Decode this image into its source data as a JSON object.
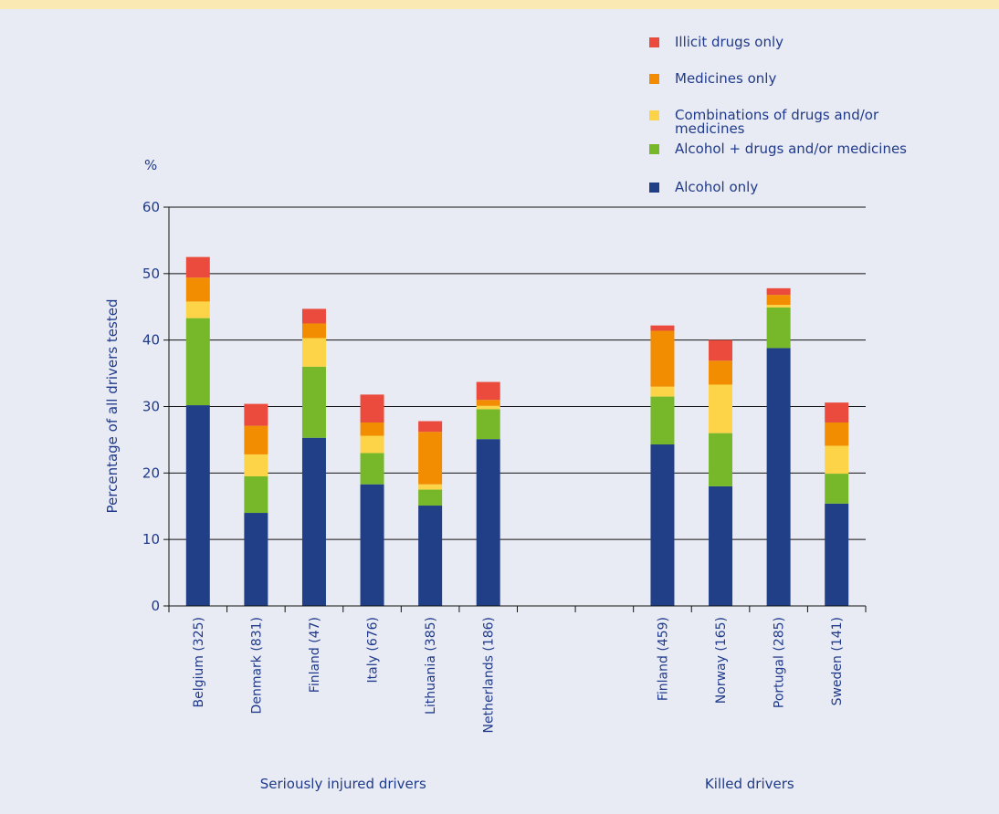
{
  "chart_data": {
    "type": "bar",
    "stacked": true,
    "ylabel": "Percentage of all drivers tested",
    "yunit": "%",
    "ylim": [
      0,
      60
    ],
    "yticks": [
      0,
      10,
      20,
      30,
      40,
      50,
      60
    ],
    "grid": true,
    "legend_position": "top-right",
    "categories": [
      "Belgium (325)",
      "Denmark (831)",
      "Finland (47)",
      "Italy (676)",
      "Lithuania (385)",
      "Netherlands (186)",
      "",
      "",
      "Finland (459)",
      "Norway (165)",
      "Portugal (285)",
      "Sweden (141)"
    ],
    "groups": [
      {
        "label": "Seriously injured drivers",
        "from": 0,
        "to": 5
      },
      {
        "label": "Killed drivers",
        "from": 8,
        "to": 11
      }
    ],
    "series": [
      {
        "name": "Alcohol only",
        "color": "#203f87",
        "values": [
          30.2,
          14.0,
          25.3,
          18.3,
          15.1,
          25.1,
          null,
          null,
          24.3,
          18.0,
          38.8,
          15.4
        ]
      },
      {
        "name": "Alcohol + drugs and/or medicines",
        "color": "#76b82a",
        "values": [
          13.1,
          5.5,
          10.7,
          4.7,
          2.4,
          4.5,
          null,
          null,
          7.2,
          8.0,
          6.1,
          4.5
        ]
      },
      {
        "name": "Combinations of drugs and/or medicines",
        "color": "#fdd447",
        "values": [
          2.5,
          3.3,
          4.3,
          2.6,
          0.8,
          0.5,
          null,
          null,
          1.5,
          7.3,
          0.4,
          4.2
        ]
      },
      {
        "name": "Medicines only",
        "color": "#f28c00",
        "values": [
          3.6,
          4.3,
          2.2,
          2.0,
          7.9,
          0.9,
          null,
          null,
          8.4,
          3.6,
          1.5,
          3.5
        ]
      },
      {
        "name": "Illicit drugs only",
        "color": "#ea4b3c",
        "values": [
          3.1,
          3.3,
          2.2,
          4.2,
          1.6,
          2.7,
          null,
          null,
          0.8,
          3.1,
          1.0,
          3.0
        ]
      }
    ]
  }
}
